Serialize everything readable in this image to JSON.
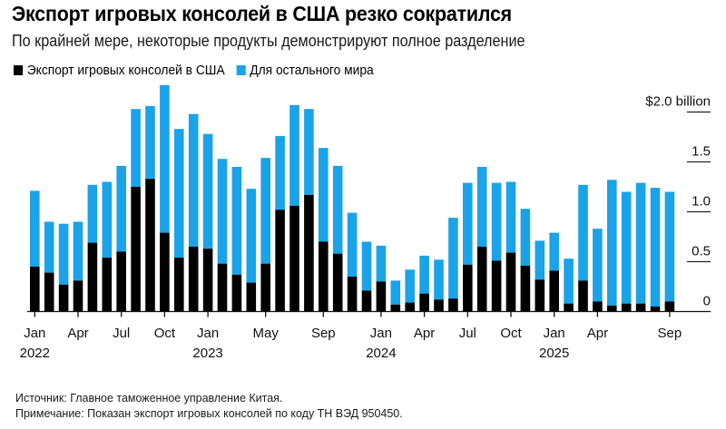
{
  "header": {
    "title": "Экспорт игровых консолей в США резко сократился",
    "subtitle": "По крайней мере, некоторые продукты демонстрируют полное разделение"
  },
  "legend": [
    {
      "label": "Экспорт игровых консолей в США",
      "color": "#000000"
    },
    {
      "label": "Для остального мира",
      "color": "#1AA3E8"
    }
  ],
  "footer": {
    "source": "Источник: Главное таможенное управление Китая.",
    "note": "Примечание: Показан экспорт игровых консолей по коду ТН ВЭД 950450."
  },
  "chart_data": {
    "type": "bar",
    "stacked": true,
    "title": "Экспорт игровых консолей в США резко сократился",
    "subtitle": "По крайней мере, некоторые продукты демонстрируют полное разделение",
    "xlabel": "",
    "ylabel": "$ billion",
    "ylim": [
      0,
      2.0
    ],
    "y_ticks": [
      0,
      0.5,
      1.0,
      1.5,
      2.0
    ],
    "y_tick_labels": [
      "0",
      "0.5",
      "1.0",
      "1.5",
      "$2.0 billion"
    ],
    "y_axis_position": "right",
    "grid": true,
    "legend_position": "top-left",
    "x_tick_labels": [
      {
        "index": 0,
        "label": "Jan",
        "year": "2022"
      },
      {
        "index": 3,
        "label": "Apr"
      },
      {
        "index": 6,
        "label": "Jul"
      },
      {
        "index": 9,
        "label": "Oct"
      },
      {
        "index": 12,
        "label": "Jan",
        "year": "2023"
      },
      {
        "index": 16,
        "label": "May"
      },
      {
        "index": 20,
        "label": "Sep"
      },
      {
        "index": 24,
        "label": "Jan",
        "year": "2024"
      },
      {
        "index": 27,
        "label": "Apr"
      },
      {
        "index": 30,
        "label": "Jul"
      },
      {
        "index": 33,
        "label": "Oct"
      },
      {
        "index": 36,
        "label": "Jan",
        "year": "2025"
      },
      {
        "index": 39,
        "label": "Apr"
      },
      {
        "index": 44,
        "label": "Sep"
      }
    ],
    "categories": [
      "2022-01",
      "2022-02",
      "2022-03",
      "2022-04",
      "2022-05",
      "2022-06",
      "2022-07",
      "2022-08",
      "2022-09",
      "2022-10",
      "2022-11",
      "2022-12",
      "2023-01",
      "2023-02",
      "2023-03",
      "2023-04",
      "2023-05",
      "2023-06",
      "2023-07",
      "2023-08",
      "2023-09",
      "2023-10",
      "2023-11",
      "2023-12",
      "2024-01",
      "2024-02",
      "2024-03",
      "2024-04",
      "2024-05",
      "2024-06",
      "2024-07",
      "2024-08",
      "2024-09",
      "2024-10",
      "2024-11",
      "2024-12",
      "2025-01",
      "2025-02",
      "2025-03",
      "2025-04",
      "2025-05",
      "2025-06",
      "2025-07",
      "2025-08",
      "2025-09"
    ],
    "series": [
      {
        "name": "Экспорт игровых консолей в США",
        "color": "#000000",
        "values": [
          0.45,
          0.39,
          0.27,
          0.31,
          0.69,
          0.54,
          0.6,
          1.25,
          1.33,
          0.79,
          0.54,
          0.65,
          0.63,
          0.48,
          0.37,
          0.29,
          0.48,
          1.02,
          1.06,
          1.17,
          0.7,
          0.58,
          0.35,
          0.21,
          0.3,
          0.07,
          0.09,
          0.18,
          0.12,
          0.13,
          0.47,
          0.65,
          0.51,
          0.59,
          0.46,
          0.32,
          0.41,
          0.08,
          0.31,
          0.1,
          0.06,
          0.08,
          0.08,
          0.05,
          0.1
        ]
      },
      {
        "name": "Для остального мира",
        "color": "#1AA3E8",
        "values": [
          0.76,
          0.51,
          0.61,
          0.59,
          0.58,
          0.76,
          0.86,
          0.78,
          0.73,
          1.48,
          1.29,
          1.33,
          1.15,
          1.05,
          1.08,
          0.94,
          1.06,
          0.74,
          1.01,
          0.86,
          0.94,
          0.88,
          0.64,
          0.49,
          0.36,
          0.24,
          0.33,
          0.38,
          0.4,
          0.81,
          0.82,
          0.8,
          0.78,
          0.71,
          0.57,
          0.39,
          0.38,
          0.45,
          0.96,
          0.73,
          1.26,
          1.12,
          1.21,
          1.19,
          1.1
        ]
      }
    ]
  }
}
